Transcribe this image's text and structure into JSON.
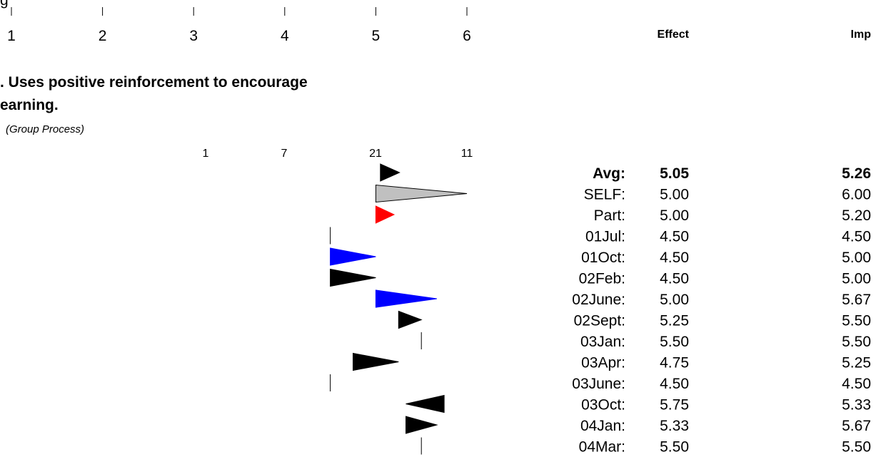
{
  "header": {
    "truncated_title": "g",
    "scale_labels": [
      "1",
      "2",
      "3",
      "4",
      "5",
      "6"
    ],
    "col_effect": "Effect",
    "col_imp": "Imp"
  },
  "question": {
    "title_line1": ". Uses positive reinforcement to encourage",
    "title_line2": "earning.",
    "category": "(Group Process)",
    "counts": [
      "1",
      "7",
      "21",
      "11"
    ]
  },
  "chart_data": {
    "type": "table",
    "scale": [
      1,
      6
    ],
    "columns": [
      "Effect",
      "Imp"
    ],
    "rows": [
      {
        "label": "Avg:",
        "effect": 5.05,
        "imp": 5.26,
        "effect_text": "5.05",
        "imp_text": "5.26",
        "color": "#000000",
        "bold": true
      },
      {
        "label": "SELF:",
        "effect": 5.0,
        "imp": 6.0,
        "effect_text": "5.00",
        "imp_text": "6.00",
        "color": "#c0c0c0",
        "bold": false
      },
      {
        "label": "Part:",
        "effect": 5.0,
        "imp": 5.2,
        "effect_text": "5.00",
        "imp_text": "5.20",
        "color": "#ff0000",
        "bold": false
      },
      {
        "label": "01Jul:",
        "effect": 4.5,
        "imp": 4.5,
        "effect_text": "4.50",
        "imp_text": "4.50",
        "color": "#000000",
        "bold": false
      },
      {
        "label": "01Oct:",
        "effect": 4.5,
        "imp": 5.0,
        "effect_text": "4.50",
        "imp_text": "5.00",
        "color": "#0000ff",
        "bold": false
      },
      {
        "label": "02Feb:",
        "effect": 4.5,
        "imp": 5.0,
        "effect_text": "4.50",
        "imp_text": "5.00",
        "color": "#000000",
        "bold": false
      },
      {
        "label": "02June:",
        "effect": 5.0,
        "imp": 5.67,
        "effect_text": "5.00",
        "imp_text": "5.67",
        "color": "#0000ff",
        "bold": false
      },
      {
        "label": "02Sept:",
        "effect": 5.25,
        "imp": 5.5,
        "effect_text": "5.25",
        "imp_text": "5.50",
        "color": "#000000",
        "bold": false
      },
      {
        "label": "03Jan:",
        "effect": 5.5,
        "imp": 5.5,
        "effect_text": "5.50",
        "imp_text": "5.50",
        "color": "#000000",
        "bold": false
      },
      {
        "label": "03Apr:",
        "effect": 4.75,
        "imp": 5.25,
        "effect_text": "4.75",
        "imp_text": "5.25",
        "color": "#000000",
        "bold": false
      },
      {
        "label": "03June:",
        "effect": 4.5,
        "imp": 4.5,
        "effect_text": "4.50",
        "imp_text": "4.50",
        "color": "#000000",
        "bold": false
      },
      {
        "label": "03Oct:",
        "effect": 5.75,
        "imp": 5.33,
        "effect_text": "5.75",
        "imp_text": "5.33",
        "color": "#000000",
        "bold": false
      },
      {
        "label": "04Jan:",
        "effect": 5.33,
        "imp": 5.67,
        "effect_text": "5.33",
        "imp_text": "5.67",
        "color": "#000000",
        "bold": false
      },
      {
        "label": "04Mar:",
        "effect": 5.5,
        "imp": 5.5,
        "effect_text": "5.50",
        "imp_text": "5.50",
        "color": "#000000",
        "bold": false
      }
    ]
  }
}
